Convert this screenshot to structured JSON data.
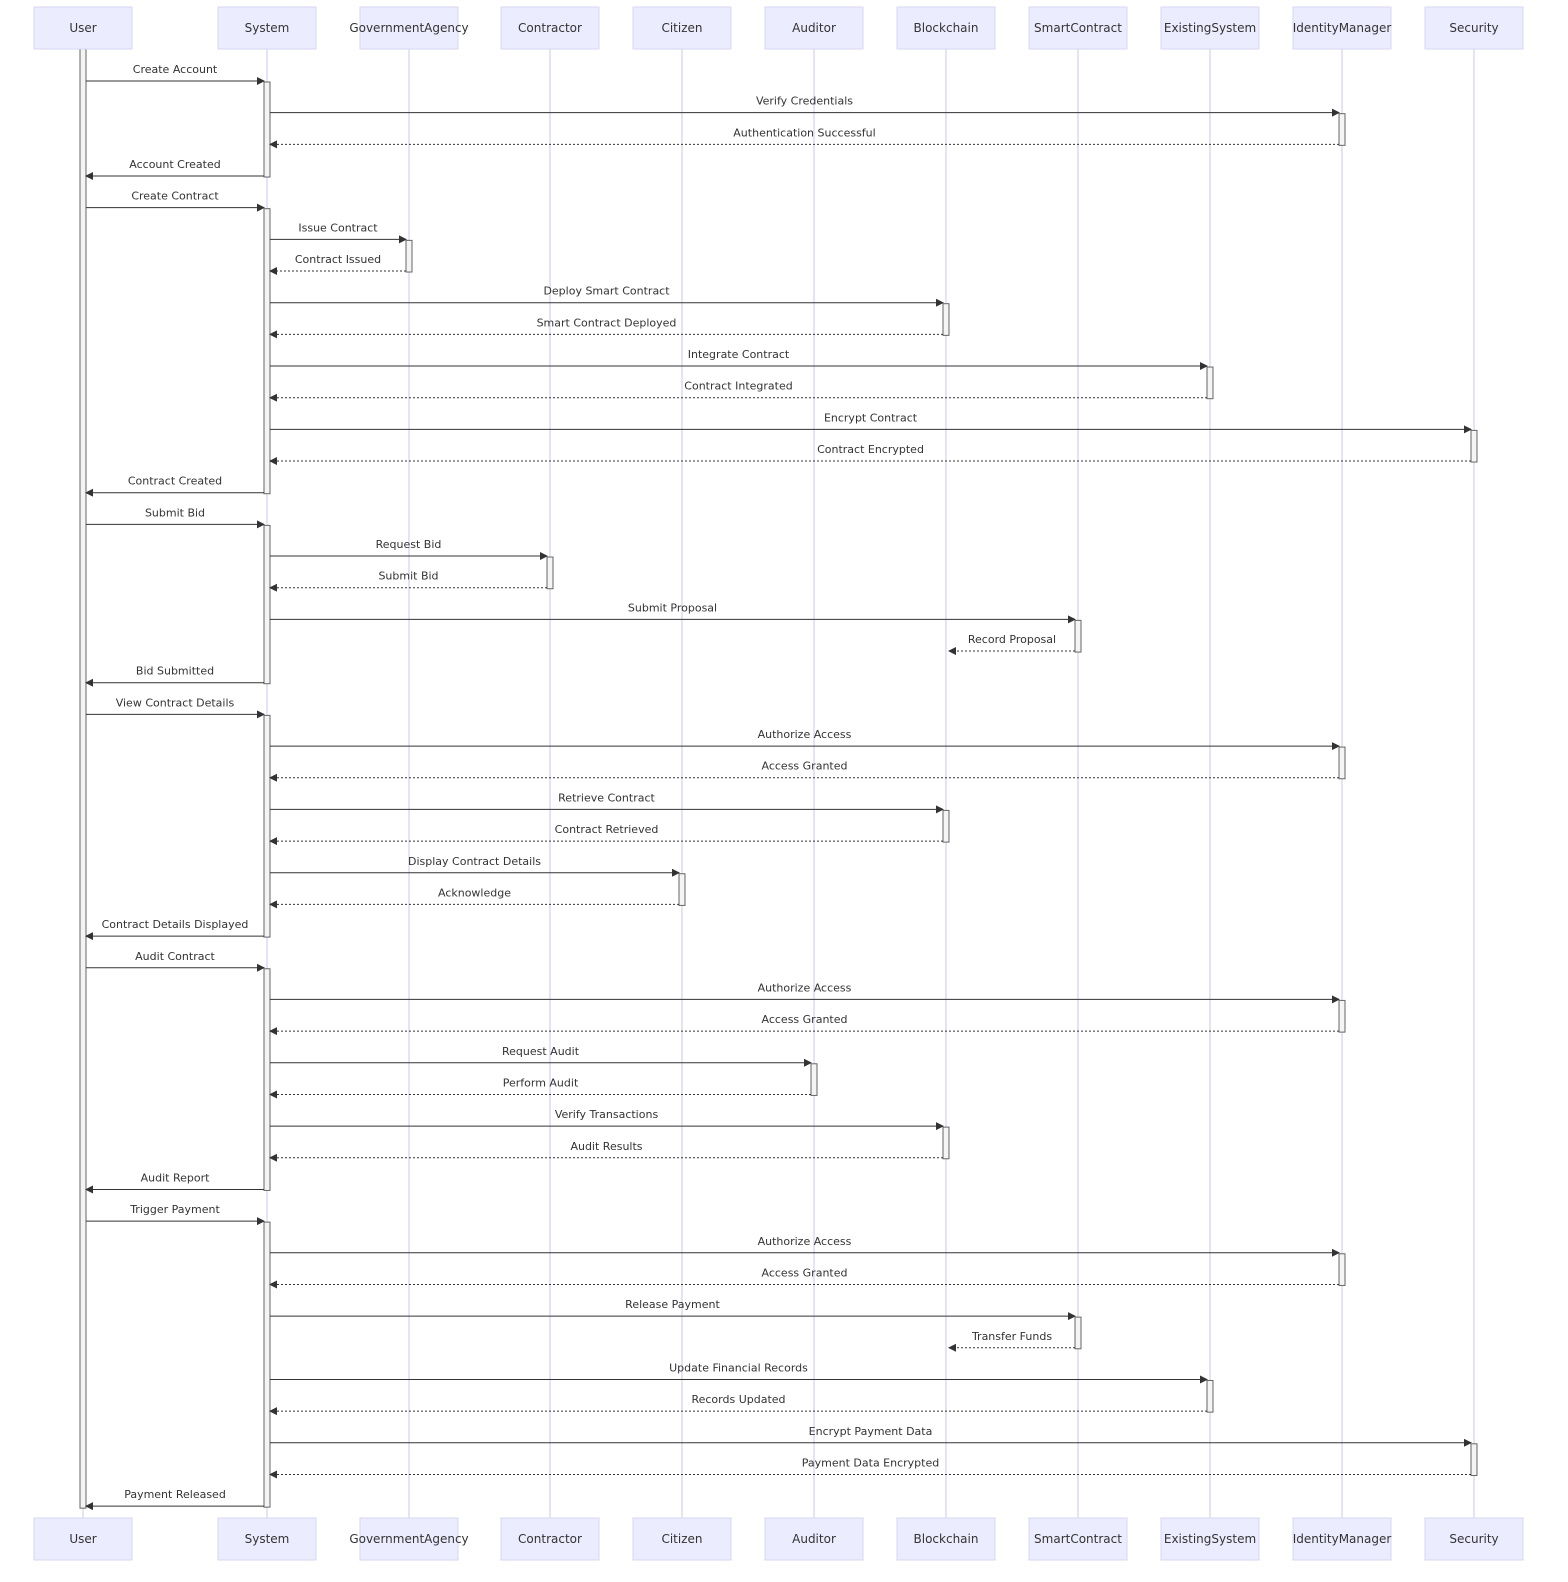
{
  "actors": [
    "User",
    "System",
    "GovernmentAgency",
    "Contractor",
    "Citizen",
    "Auditor",
    "Blockchain",
    "SmartContract",
    "ExistingSystem",
    "IdentityManager",
    "Security"
  ],
  "messages": [
    {
      "from": "User",
      "to": "System",
      "label": "Create Account",
      "type": "sync"
    },
    {
      "from": "System",
      "to": "IdentityManager",
      "label": "Verify Credentials",
      "type": "sync"
    },
    {
      "from": "IdentityManager",
      "to": "System",
      "label": "Authentication Successful",
      "type": "reply"
    },
    {
      "from": "System",
      "to": "User",
      "label": "Account Created",
      "type": "sync"
    },
    {
      "from": "User",
      "to": "System",
      "label": "Create Contract",
      "type": "sync"
    },
    {
      "from": "System",
      "to": "GovernmentAgency",
      "label": "Issue Contract",
      "type": "sync"
    },
    {
      "from": "GovernmentAgency",
      "to": "System",
      "label": "Contract Issued",
      "type": "reply"
    },
    {
      "from": "System",
      "to": "Blockchain",
      "label": "Deploy Smart Contract",
      "type": "sync"
    },
    {
      "from": "Blockchain",
      "to": "System",
      "label": "Smart Contract Deployed",
      "type": "reply"
    },
    {
      "from": "System",
      "to": "ExistingSystem",
      "label": "Integrate Contract",
      "type": "sync"
    },
    {
      "from": "ExistingSystem",
      "to": "System",
      "label": "Contract Integrated",
      "type": "reply"
    },
    {
      "from": "System",
      "to": "Security",
      "label": "Encrypt Contract",
      "type": "sync"
    },
    {
      "from": "Security",
      "to": "System",
      "label": "Contract Encrypted",
      "type": "reply"
    },
    {
      "from": "System",
      "to": "User",
      "label": "Contract Created",
      "type": "sync"
    },
    {
      "from": "User",
      "to": "System",
      "label": "Submit Bid",
      "type": "sync"
    },
    {
      "from": "System",
      "to": "Contractor",
      "label": "Request Bid",
      "type": "sync"
    },
    {
      "from": "Contractor",
      "to": "System",
      "label": "Submit Bid",
      "type": "reply"
    },
    {
      "from": "System",
      "to": "SmartContract",
      "label": "Submit Proposal",
      "type": "sync"
    },
    {
      "from": "SmartContract",
      "to": "Blockchain",
      "label": "Record Proposal",
      "type": "reply"
    },
    {
      "from": "System",
      "to": "User",
      "label": "Bid Submitted",
      "type": "sync"
    },
    {
      "from": "User",
      "to": "System",
      "label": "View Contract Details",
      "type": "sync"
    },
    {
      "from": "System",
      "to": "IdentityManager",
      "label": "Authorize Access",
      "type": "sync"
    },
    {
      "from": "IdentityManager",
      "to": "System",
      "label": "Access Granted",
      "type": "reply"
    },
    {
      "from": "System",
      "to": "Blockchain",
      "label": "Retrieve Contract",
      "type": "sync"
    },
    {
      "from": "Blockchain",
      "to": "System",
      "label": "Contract Retrieved",
      "type": "reply"
    },
    {
      "from": "System",
      "to": "Citizen",
      "label": "Display Contract Details",
      "type": "sync"
    },
    {
      "from": "Citizen",
      "to": "System",
      "label": "Acknowledge",
      "type": "reply"
    },
    {
      "from": "System",
      "to": "User",
      "label": "Contract Details Displayed",
      "type": "sync"
    },
    {
      "from": "User",
      "to": "System",
      "label": "Audit Contract",
      "type": "sync"
    },
    {
      "from": "System",
      "to": "IdentityManager",
      "label": "Authorize Access",
      "type": "sync"
    },
    {
      "from": "IdentityManager",
      "to": "System",
      "label": "Access Granted",
      "type": "reply"
    },
    {
      "from": "System",
      "to": "Auditor",
      "label": "Request Audit",
      "type": "sync"
    },
    {
      "from": "Auditor",
      "to": "System",
      "label": "Perform Audit",
      "type": "reply"
    },
    {
      "from": "System",
      "to": "Blockchain",
      "label": "Verify Transactions",
      "type": "sync"
    },
    {
      "from": "Blockchain",
      "to": "System",
      "label": "Audit Results",
      "type": "reply"
    },
    {
      "from": "System",
      "to": "User",
      "label": "Audit Report",
      "type": "sync"
    },
    {
      "from": "User",
      "to": "System",
      "label": "Trigger Payment",
      "type": "sync"
    },
    {
      "from": "System",
      "to": "IdentityManager",
      "label": "Authorize Access",
      "type": "sync"
    },
    {
      "from": "IdentityManager",
      "to": "System",
      "label": "Access Granted",
      "type": "reply"
    },
    {
      "from": "System",
      "to": "SmartContract",
      "label": "Release Payment",
      "type": "sync"
    },
    {
      "from": "SmartContract",
      "to": "Blockchain",
      "label": "Transfer Funds",
      "type": "reply"
    },
    {
      "from": "System",
      "to": "ExistingSystem",
      "label": "Update Financial Records",
      "type": "sync"
    },
    {
      "from": "ExistingSystem",
      "to": "System",
      "label": "Records Updated",
      "type": "reply"
    },
    {
      "from": "System",
      "to": "Security",
      "label": "Encrypt Payment Data",
      "type": "sync"
    },
    {
      "from": "Security",
      "to": "System",
      "label": "Payment Data Encrypted",
      "type": "reply"
    },
    {
      "from": "System",
      "to": "User",
      "label": "Payment Released",
      "type": "sync"
    }
  ],
  "colors": {
    "actor_fill": "#ECECFF",
    "lifeline": "#c9c9ee",
    "line": "#333333",
    "activation_fill": "#f4f4f4"
  }
}
